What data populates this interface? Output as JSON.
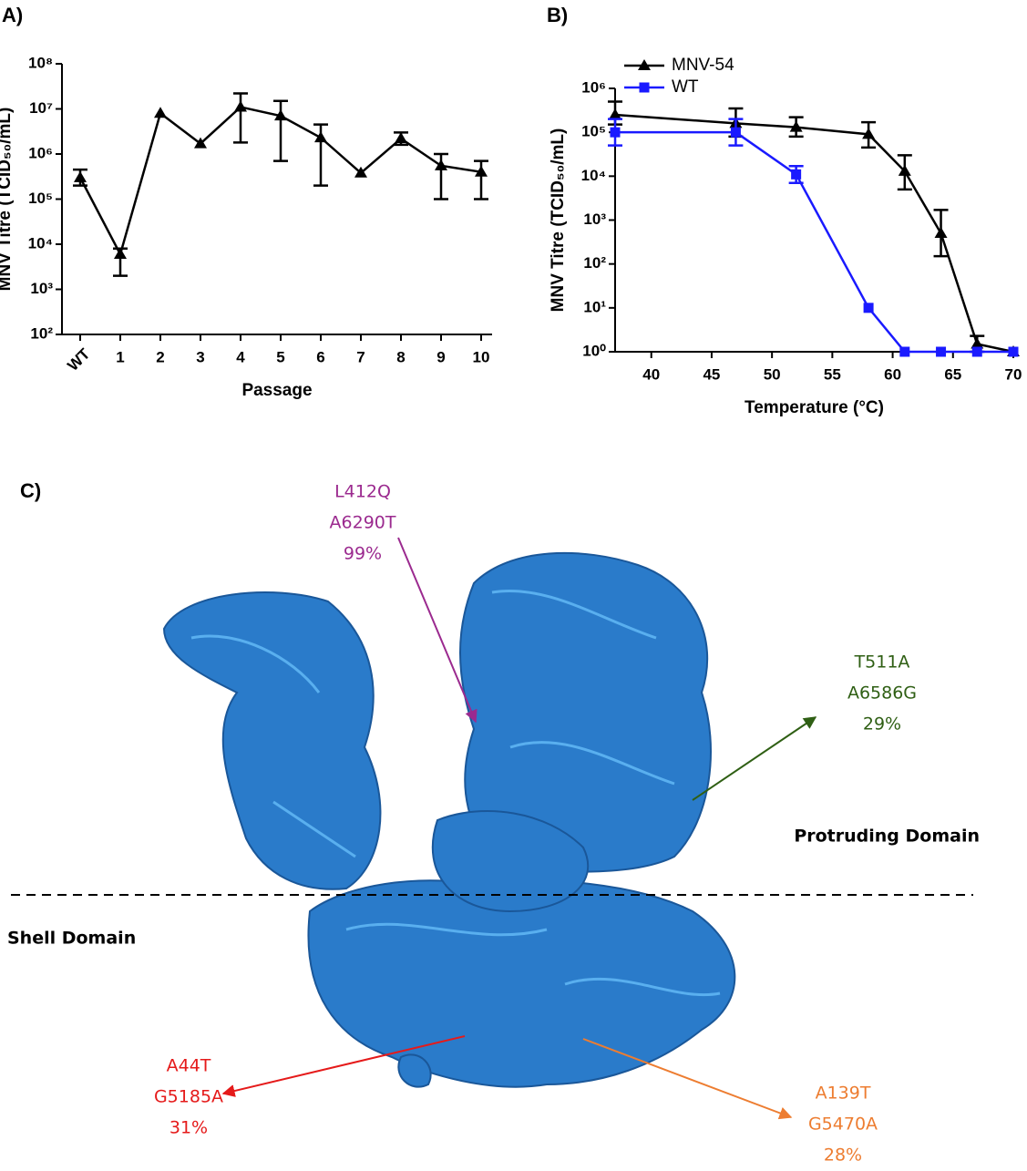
{
  "panel_labels": [
    "A)",
    "B)"
  ],
  "chart_data": [
    {
      "type": "line",
      "xlabel": "Passage",
      "ylabel": "MNV Titre (TCID₅₀/mL)",
      "log_y": true,
      "categories": [
        "WT",
        "1",
        "2",
        "3",
        "4",
        "5",
        "6",
        "7",
        "8",
        "9",
        "10"
      ],
      "series": [
        {
          "name": null,
          "color": "#000000",
          "marker": "triangle",
          "values": [
            300000,
            6000,
            8000000,
            1700000,
            11000000,
            7000000,
            2300000,
            380000,
            2200000,
            550000,
            400000
          ],
          "err_low": [
            200000,
            2000,
            null,
            null,
            1800000,
            700000,
            200000,
            null,
            1600000,
            100000,
            100000
          ],
          "err_high": [
            450000,
            8000,
            null,
            null,
            22000000,
            15000000,
            4500000,
            null,
            3000000,
            1000000,
            700000
          ]
        }
      ],
      "ylim": [
        100,
        100000000
      ],
      "yticks": [
        {
          "value": 100,
          "label": "10²"
        },
        {
          "value": 1000,
          "label": "10³"
        },
        {
          "value": 10000,
          "label": "10⁴"
        },
        {
          "value": 100000,
          "label": "10⁵"
        },
        {
          "value": 1000000,
          "label": "10⁶"
        },
        {
          "value": 10000000,
          "label": "10⁷"
        },
        {
          "value": 100000000,
          "label": "10⁸"
        }
      ]
    },
    {
      "type": "line",
      "xlabel": "Temperature (°C)",
      "ylabel": "MNV Titre (TCID₅₀/mL)",
      "log_y": true,
      "legend": "top-left",
      "series": [
        {
          "name": "MNV-54",
          "color": "#000000",
          "marker": "triangle",
          "x": [
            37,
            47,
            52,
            58,
            61,
            64,
            67,
            70
          ],
          "values": [
            250000,
            160000,
            130000,
            90000,
            13000,
            500,
            1.5,
            1
          ],
          "err_low": [
            150000,
            80000,
            80000,
            45000,
            5000,
            150,
            1,
            null
          ],
          "err_high": [
            500000,
            350000,
            220000,
            170000,
            30000,
            1700,
            2.3,
            null
          ]
        },
        {
          "name": "WT",
          "color": "#1a1aff",
          "marker": "square",
          "x": [
            37,
            47,
            52,
            58,
            61,
            64,
            67,
            70
          ],
          "values": [
            100000,
            100000,
            11000,
            10,
            1,
            1,
            1,
            1
          ],
          "err_low": [
            50000,
            50000,
            7000,
            null,
            null,
            null,
            null,
            null
          ],
          "err_high": [
            200000,
            200000,
            17000,
            null,
            null,
            null,
            null,
            null
          ]
        }
      ],
      "xlim": [
        37,
        70
      ],
      "xticks": [
        40,
        45,
        50,
        55,
        60,
        65,
        70
      ],
      "ylim": [
        1,
        1000000
      ],
      "yticks": [
        {
          "value": 1,
          "label": "10⁰"
        },
        {
          "value": 10,
          "label": "10¹"
        },
        {
          "value": 100,
          "label": "10²"
        },
        {
          "value": 1000,
          "label": "10³"
        },
        {
          "value": 10000,
          "label": "10⁴"
        },
        {
          "value": 100000,
          "label": "10⁵"
        },
        {
          "value": 1000000,
          "label": "10⁶"
        }
      ]
    }
  ],
  "panel_c": {
    "label": "C)",
    "protruding": "Protruding Domain",
    "shell": "Shell Domain",
    "mutations": [
      {
        "lines": [
          "L412Q",
          "A6290T",
          "99%"
        ],
        "color": "#9b2a8f"
      },
      {
        "lines": [
          "T511A",
          "A6586G",
          "29%"
        ],
        "color": "#2f5f14"
      },
      {
        "lines": [
          "A44T",
          "G5185A",
          "31%"
        ],
        "color": "#e51a1a"
      },
      {
        "lines": [
          "A139T",
          "G5470A",
          "28%"
        ],
        "color": "#ed7d31"
      }
    ]
  }
}
